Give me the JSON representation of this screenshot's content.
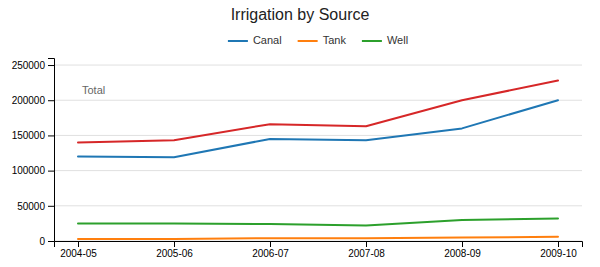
{
  "chart_data": {
    "type": "line",
    "title": "Irrigation by Source",
    "categories": [
      "2004-05",
      "2005-06",
      "2006-07",
      "2007-08",
      "2008-09",
      "2009-10"
    ],
    "series": [
      {
        "name": "Canal",
        "values": [
          120000,
          119000,
          145000,
          143000,
          160000,
          200000
        ]
      },
      {
        "name": "Tank",
        "values": [
          3000,
          3000,
          4000,
          4000,
          5000,
          6000
        ]
      },
      {
        "name": "Well",
        "values": [
          25000,
          25000,
          24000,
          22000,
          30000,
          32000
        ]
      },
      {
        "values": [
          140000,
          143000,
          166000,
          163000,
          200000,
          228000
        ]
      }
    ],
    "annotations": [
      {
        "text": "Total",
        "x": "2004-05",
        "y": 213000
      }
    ],
    "ylim": [
      0,
      260000
    ],
    "yticks": [
      0,
      50000,
      100000,
      150000,
      200000,
      250000
    ],
    "grid": true,
    "legend": "upper center"
  }
}
